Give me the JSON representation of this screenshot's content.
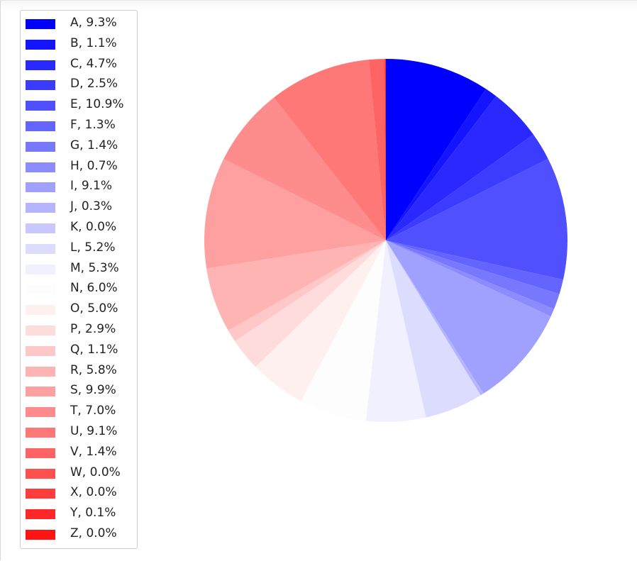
{
  "chart_data": {
    "type": "pie",
    "legend_position": "upper-left",
    "start_angle": "top, clockwise",
    "colormap": "bwr",
    "slices": [
      {
        "label": "A, 9.3%",
        "value": 9.3,
        "color": "#0000ff"
      },
      {
        "label": "B, 1.1%",
        "value": 1.1,
        "color": "#1414ff"
      },
      {
        "label": "C, 4.7%",
        "value": 4.7,
        "color": "#2828ff"
      },
      {
        "label": "D, 2.5%",
        "value": 2.5,
        "color": "#3c3cff"
      },
      {
        "label": "E, 10.9%",
        "value": 10.9,
        "color": "#5050ff"
      },
      {
        "label": "F, 1.3%",
        "value": 1.3,
        "color": "#6464ff"
      },
      {
        "label": "G, 1.4%",
        "value": 1.4,
        "color": "#7878ff"
      },
      {
        "label": "H, 0.7%",
        "value": 0.7,
        "color": "#8c8cff"
      },
      {
        "label": "I, 9.1%",
        "value": 9.1,
        "color": "#a0a0ff"
      },
      {
        "label": "J, 0.3%",
        "value": 0.3,
        "color": "#b4b4ff"
      },
      {
        "label": "K, 0.0%",
        "value": 0.0,
        "color": "#c8c8ff"
      },
      {
        "label": "L, 5.2%",
        "value": 5.2,
        "color": "#dcdcff"
      },
      {
        "label": "M, 5.3%",
        "value": 5.3,
        "color": "#f0f0ff"
      },
      {
        "label": "N, 6.0%",
        "value": 6.0,
        "color": "#fdfdfd"
      },
      {
        "label": "O, 5.0%",
        "value": 5.0,
        "color": "#fff0f0"
      },
      {
        "label": "P, 2.9%",
        "value": 2.9,
        "color": "#ffdcdc"
      },
      {
        "label": "Q, 1.1%",
        "value": 1.1,
        "color": "#ffc8c8"
      },
      {
        "label": "R, 5.8%",
        "value": 5.8,
        "color": "#ffb4b4"
      },
      {
        "label": "S, 9.9%",
        "value": 9.9,
        "color": "#ffa0a0"
      },
      {
        "label": "T, 7.0%",
        "value": 7.0,
        "color": "#ff8c8c"
      },
      {
        "label": "U, 9.1%",
        "value": 9.1,
        "color": "#ff7878"
      },
      {
        "label": "V, 1.4%",
        "value": 1.4,
        "color": "#ff6464"
      },
      {
        "label": "W, 0.0%",
        "value": 0.0,
        "color": "#ff5050"
      },
      {
        "label": "X, 0.0%",
        "value": 0.0,
        "color": "#ff3c3c"
      },
      {
        "label": "Y, 0.1%",
        "value": 0.1,
        "color": "#ff2828"
      },
      {
        "label": "Z, 0.0%",
        "value": 0.0,
        "color": "#ff1414"
      }
    ]
  }
}
